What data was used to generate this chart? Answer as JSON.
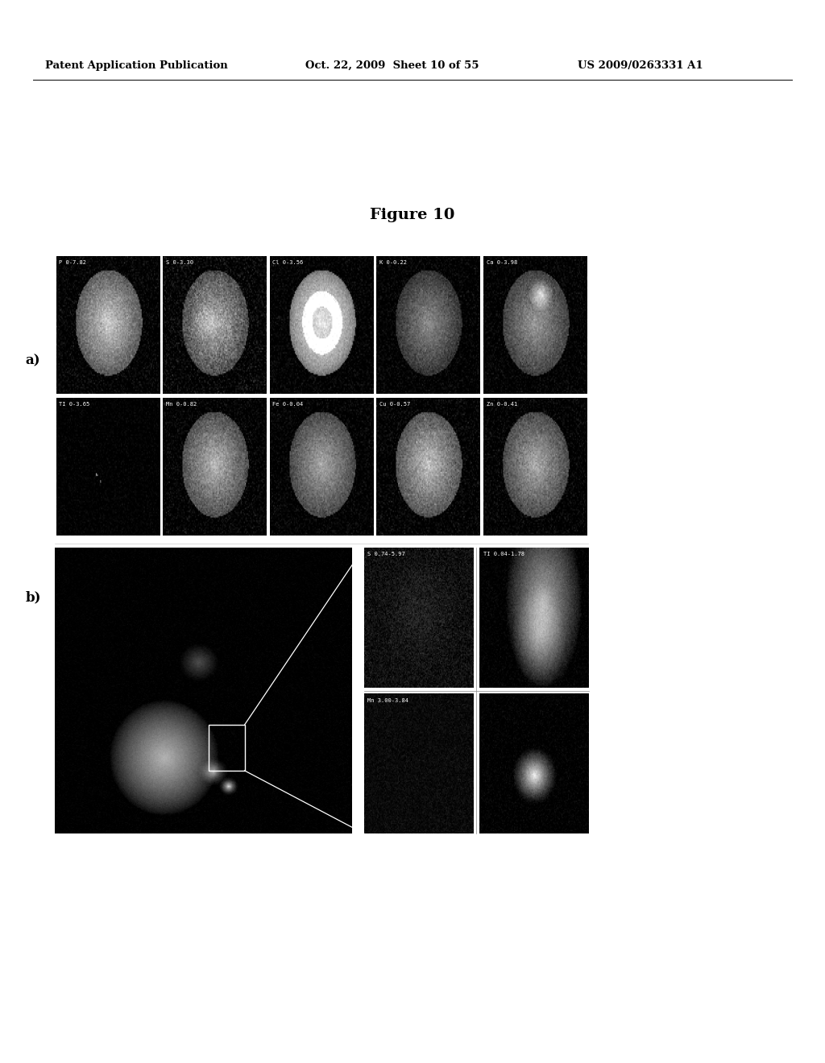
{
  "header_left": "Patent Application Publication",
  "header_mid": "Oct. 22, 2009  Sheet 10 of 55",
  "header_right": "US 2009/0263331 A1",
  "figure_title": "Figure 10",
  "label_a": "a)",
  "label_b": "b)",
  "row1_labels": [
    "P 0-7.82",
    "S 0-3.30",
    "Cl 0-3.56",
    "K 0-0.22",
    "Ca 0-3.98"
  ],
  "row2_labels": [
    "TI 0-3.65",
    "Mn 0-0.82",
    "Fe 0-0.04",
    "Cu 0-0.57",
    "Zn 0-0.41"
  ],
  "panel_b_sub_labels": [
    "S 0.74-5.97",
    "TI 0.04-1.78",
    "Mn 3.00-3.84",
    ""
  ],
  "bg_color": "#ffffff"
}
